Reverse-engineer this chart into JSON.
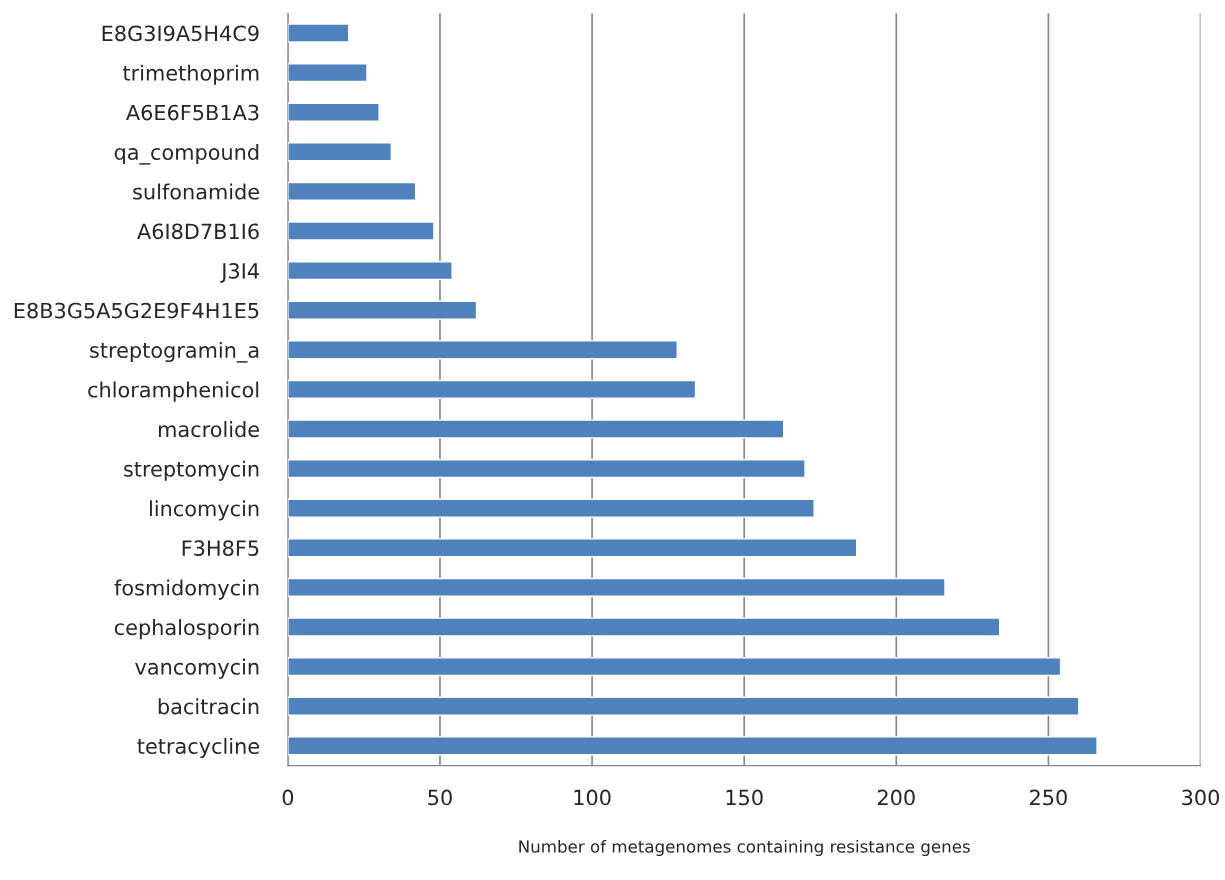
{
  "chart_data": {
    "type": "bar",
    "orientation": "horizontal",
    "xlabel": "Number of metagenomes containing resistance genes",
    "categories": [
      "E8G3I9A5H4C9",
      "trimethoprim",
      "A6E6F5B1A3",
      "qa_compound",
      "sulfonamide",
      "A6I8D7B1I6",
      "J3I4",
      "E8B3G5A5G2E9F4H1E5",
      "streptogramin_a",
      "chloramphenicol",
      "macrolide",
      "streptomycin",
      "lincomycin",
      "F3H8F5",
      "fosmidomycin",
      "cephalosporin",
      "vancomycin",
      "bacitracin",
      "tetracycline"
    ],
    "values": [
      20,
      26,
      30,
      34,
      42,
      48,
      54,
      62,
      128,
      134,
      163,
      170,
      173,
      187,
      216,
      234,
      254,
      260,
      266
    ],
    "color": "#4f81bd",
    "xlim": [
      0,
      300
    ],
    "xticks": [
      0,
      50,
      100,
      150,
      200,
      250,
      300
    ],
    "grid": "x"
  }
}
